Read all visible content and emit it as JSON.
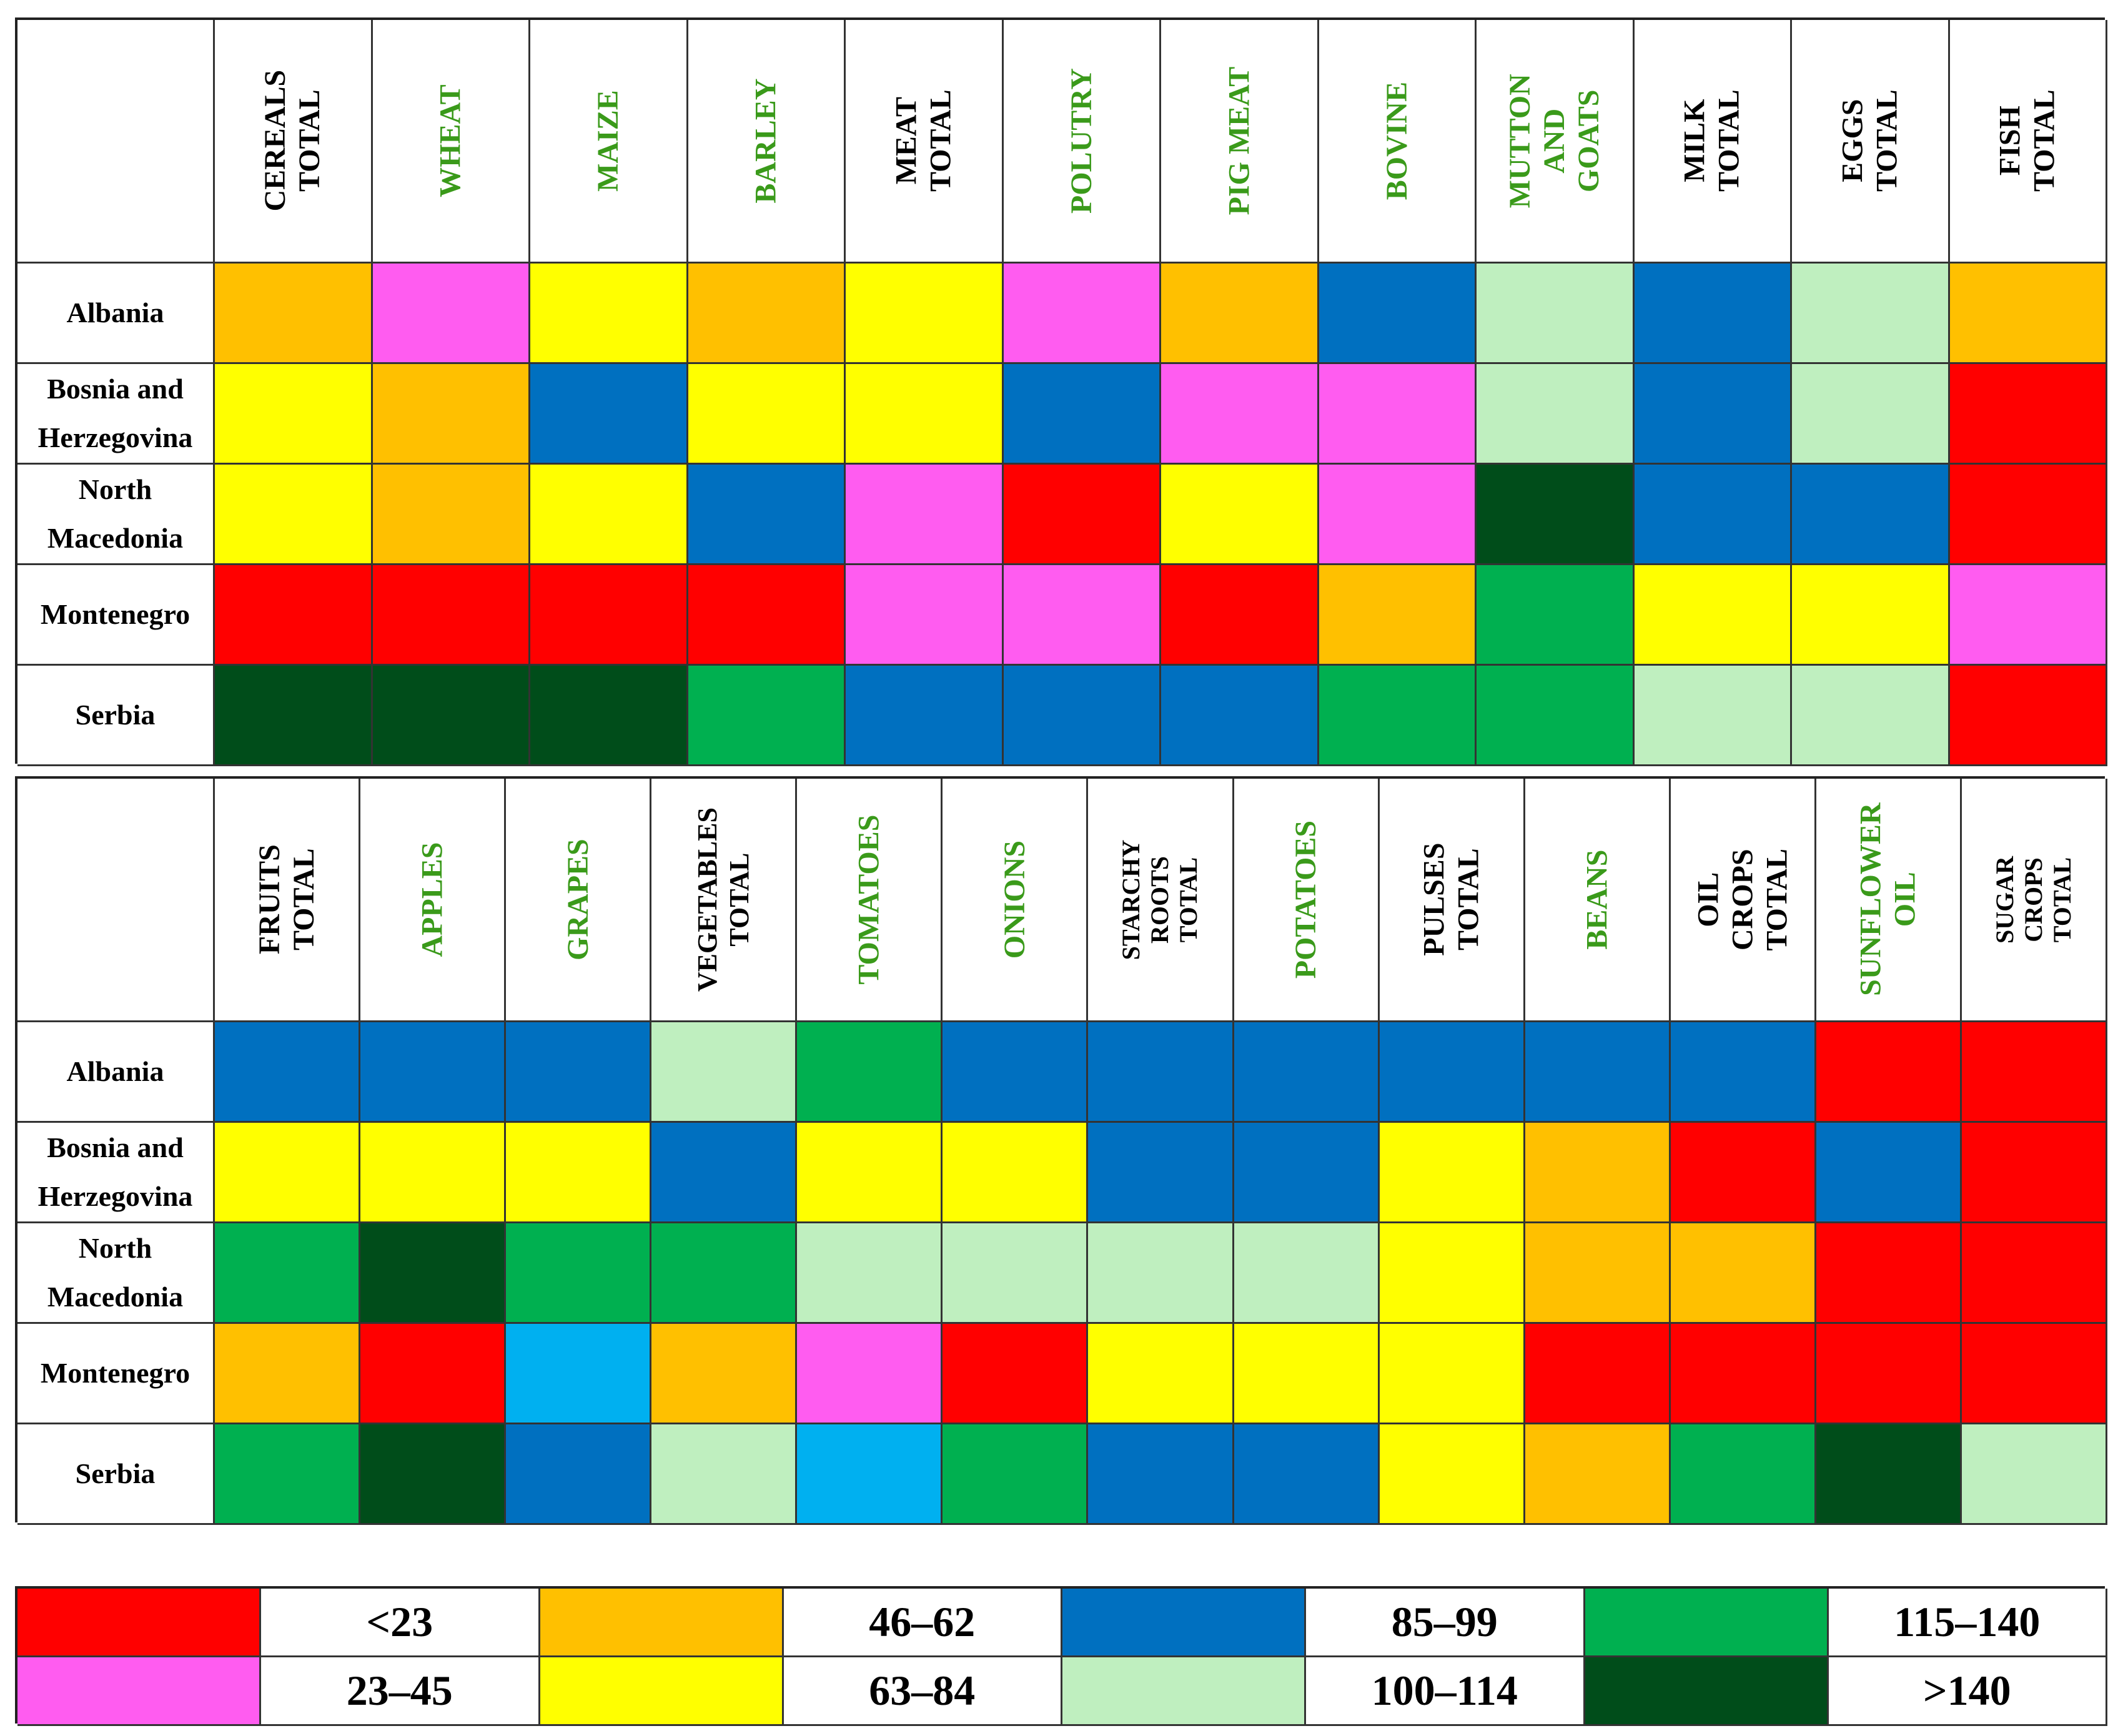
{
  "chart_data": {
    "type": "heatmap",
    "title": "",
    "legend": {
      "items": [
        {
          "label": "<23",
          "color": "#ff0000"
        },
        {
          "label": "23–45",
          "color": "#ff5cf0"
        },
        {
          "label": "46–62",
          "color": "#ffc000"
        },
        {
          "label": "63–84",
          "color": "#ffff00"
        },
        {
          "label": "85–99",
          "color": "#0070c0"
        },
        {
          "label": "100–114",
          "color": "#bfefbf"
        },
        {
          "label": "115–140",
          "color": "#00b050"
        },
        {
          "label": ">140",
          "color": "#004d1a"
        }
      ]
    },
    "category_colors": {
      "total": "#000000",
      "item": "#3a9a1a"
    },
    "tables": [
      {
        "name": "table-top",
        "columns": [
          {
            "label": "CEREALS\nTOTAL",
            "kind": "total"
          },
          {
            "label": "WHEAT",
            "kind": "item"
          },
          {
            "label": "MAIZE",
            "kind": "item"
          },
          {
            "label": "BARLEY",
            "kind": "item"
          },
          {
            "label": "MEAT\nTOTAL",
            "kind": "total"
          },
          {
            "label": "POLUTRY",
            "kind": "item"
          },
          {
            "label": "PIG MEAT",
            "kind": "item"
          },
          {
            "label": "BOVINE",
            "kind": "item"
          },
          {
            "label": "MUTTON\nAND GOATS",
            "kind": "item"
          },
          {
            "label": "MILK\nTOTAL",
            "kind": "total"
          },
          {
            "label": "EGGS\nTOTAL",
            "kind": "total"
          },
          {
            "label": "FISH\nTOTAL",
            "kind": "total"
          }
        ],
        "rows": [
          {
            "country": "Albania",
            "values": [
              "46–62",
              "23–45",
              "63–84",
              "46–62",
              "63–84",
              "23–45",
              "46–62",
              "85–99",
              "100–114",
              "85–99",
              "100–114",
              "46–62"
            ]
          },
          {
            "country": "Bosnia and\nHerzegovina",
            "values": [
              "63–84",
              "46–62",
              "85–99",
              "63–84",
              "63–84",
              "85–99",
              "23–45",
              "23–45",
              "100–114",
              "85–99",
              "100–114",
              "<23"
            ]
          },
          {
            "country": "North\nMacedonia",
            "values": [
              "63–84",
              "46–62",
              "63–84",
              "85–99",
              "23–45",
              "<23",
              "63–84",
              "23–45",
              ">140",
              "85–99",
              "85–99",
              "<23"
            ]
          },
          {
            "country": "Montenegro",
            "values": [
              "<23",
              "<23",
              "<23",
              "<23",
              "23–45",
              "23–45",
              "<23",
              "46–62",
              "115–140",
              "63–84",
              "63–84",
              "23–45"
            ]
          },
          {
            "country": "Serbia",
            "values": [
              ">140",
              ">140",
              ">140",
              "115–140",
              "85–99",
              "85–99",
              "85–99",
              "115–140",
              "115–140",
              "100–114",
              "100–114",
              "<23"
            ]
          }
        ]
      },
      {
        "name": "table-bottom",
        "columns": [
          {
            "label": "FRUITS\nTOTAL",
            "kind": "total"
          },
          {
            "label": "APPLES",
            "kind": "item"
          },
          {
            "label": "GRAPES",
            "kind": "item"
          },
          {
            "label": "VEGETABLES\nTOTAL",
            "kind": "total"
          },
          {
            "label": "TOMATOES",
            "kind": "item"
          },
          {
            "label": "ONIONS",
            "kind": "item"
          },
          {
            "label": "STARCHY\nROOTS TOTAL",
            "kind": "total"
          },
          {
            "label": "POTATOES",
            "kind": "item"
          },
          {
            "label": "PULSES\nTOTAL",
            "kind": "total"
          },
          {
            "label": "BEANS",
            "kind": "item"
          },
          {
            "label": "OIL CROPS\nTOTAL",
            "kind": "total"
          },
          {
            "label": "SUNFLOWER\nOIL",
            "kind": "item"
          },
          {
            "label": "SUGAR CROPS\nTOTAL",
            "kind": "total"
          }
        ],
        "rows": [
          {
            "country": "Albania",
            "values": [
              "85–99",
              "85–99",
              "85–99",
              "100–114",
              "115–140",
              "85–99",
              "85–99",
              "85–99",
              "85–99",
              "85–99",
              "85–99",
              "<23",
              "<23"
            ]
          },
          {
            "country": "Bosnia and\nHerzegovina",
            "values": [
              "63–84",
              "63–84",
              "63–84",
              "85–99",
              "63–84",
              "63–84",
              "85–99",
              "85–99",
              "63–84",
              "46–62",
              "<23",
              "85–99",
              "<23"
            ]
          },
          {
            "country": "North\nMacedonia",
            "values": [
              "115–140",
              ">140",
              "115–140",
              "115–140",
              "100–114",
              "100–114",
              "100–114",
              "100–114",
              "63–84",
              "46–62",
              "46–62",
              "<23",
              "<23"
            ]
          },
          {
            "country": "Montenegro",
            "values": [
              "46–62",
              "<23",
              "cyan",
              "46–62",
              "23–45",
              "<23",
              "63–84",
              "63–84",
              "63–84",
              "<23",
              "<23",
              "<23",
              "<23"
            ]
          },
          {
            "country": "Serbia",
            "values": [
              "115–140",
              ">140",
              "85–99",
              "100–114",
              "cyan",
              "115–140",
              "85–99",
              "85–99",
              "63–84",
              "46–62",
              "115–140",
              ">140",
              "100–114"
            ]
          }
        ]
      }
    ],
    "extra_colors": {
      "cyan": "#00b0f0"
    }
  }
}
